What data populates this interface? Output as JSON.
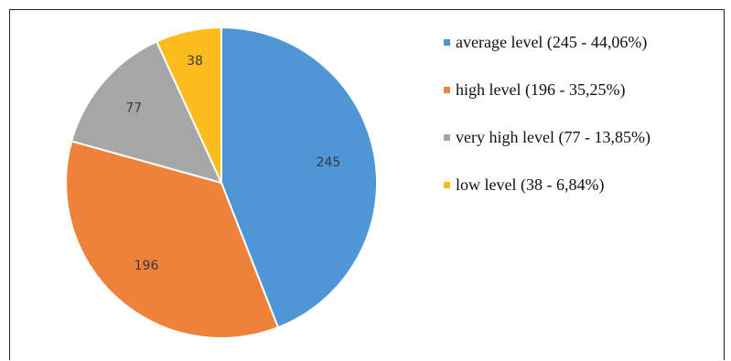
{
  "chart_data": {
    "type": "pie",
    "categories": [
      "average level",
      "high level",
      "very high level",
      "low level"
    ],
    "values": [
      245,
      196,
      77,
      38
    ],
    "colors": [
      "#4e96d6",
      "#ef823a",
      "#a6a6a6",
      "#fdbc1e"
    ],
    "slice_labels": [
      "245",
      "196",
      "77",
      "38"
    ],
    "legend_labels": [
      "average level  (245 - 44,06%)",
      "high level  (196 - 35,25%)",
      "very high level  (77 - 13,85%)",
      "low level (38 - 6,84%)"
    ],
    "legend_position": "right",
    "start_angle": "12 o'clock, clockwise"
  }
}
